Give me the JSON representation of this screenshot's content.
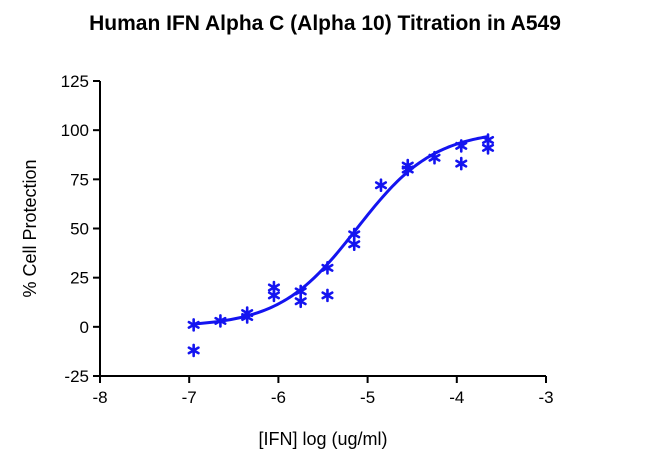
{
  "chart_data": {
    "type": "scatter",
    "title": "Human IFN Alpha C (Alpha 10) Titration in A549",
    "xlabel": "[IFN] log (ug/ml)",
    "ylabel": "% Cell Protection",
    "xlim": [
      -8,
      -3
    ],
    "ylim": [
      -25,
      125
    ],
    "xticks": [
      -8,
      -7,
      -6,
      -5,
      -4,
      -3
    ],
    "yticks": [
      -25,
      0,
      25,
      50,
      75,
      100,
      125
    ],
    "grid": false,
    "marker": "asterisk",
    "color": "#1414f0",
    "series": [
      {
        "points": [
          {
            "x": -6.95,
            "y": 1
          },
          {
            "x": -6.95,
            "y": -12
          },
          {
            "x": -6.65,
            "y": 3
          },
          {
            "x": -6.35,
            "y": 7
          },
          {
            "x": -6.35,
            "y": 5
          },
          {
            "x": -6.05,
            "y": 20
          },
          {
            "x": -6.05,
            "y": 16
          },
          {
            "x": -5.75,
            "y": 18
          },
          {
            "x": -5.75,
            "y": 13
          },
          {
            "x": -5.45,
            "y": 30
          },
          {
            "x": -5.45,
            "y": 16
          },
          {
            "x": -5.15,
            "y": 47
          },
          {
            "x": -5.15,
            "y": 42
          },
          {
            "x": -4.85,
            "y": 72
          },
          {
            "x": -4.55,
            "y": 82
          },
          {
            "x": -4.55,
            "y": 80
          },
          {
            "x": -4.25,
            "y": 86
          },
          {
            "x": -3.95,
            "y": 92
          },
          {
            "x": -3.95,
            "y": 83
          },
          {
            "x": -3.65,
            "y": 95
          },
          {
            "x": -3.65,
            "y": 91
          }
        ],
        "fit": {
          "model": "4PL",
          "bottom": 0,
          "top": 100,
          "logEC50": -5.12,
          "hill": 1.0,
          "xrange": [
            -6.95,
            -3.65
          ]
        }
      }
    ]
  }
}
